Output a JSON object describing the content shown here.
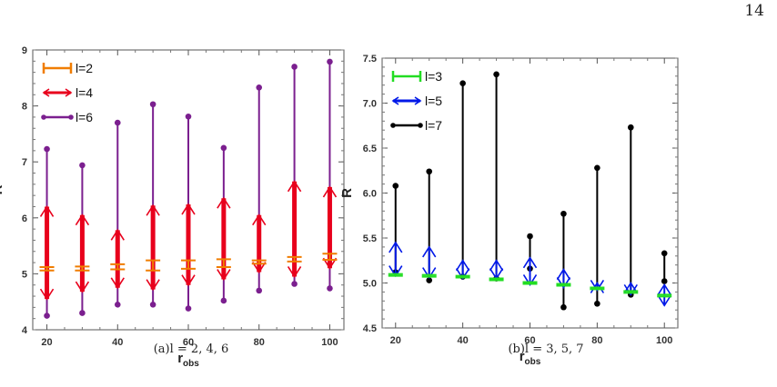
{
  "page_number": "14",
  "chart_data": [
    {
      "type": "errorbar",
      "caption": "(a)l = 2, 4, 6",
      "xlabel": "r",
      "xlabel_sub": "obs",
      "ylabel": "R",
      "xlim": [
        16,
        104
      ],
      "ylim": [
        4,
        9
      ],
      "xticks": [
        20,
        40,
        60,
        80,
        100
      ],
      "yticks": [
        4,
        5,
        6,
        7,
        8,
        9
      ],
      "grid": false,
      "legend_position": "top-left",
      "x": [
        20,
        30,
        40,
        50,
        60,
        70,
        80,
        90,
        100
      ],
      "series": [
        {
          "name": "l=6",
          "color": "#7b1f8f",
          "cap": "dot",
          "width": 2,
          "low": [
            4.25,
            4.3,
            4.45,
            4.45,
            4.38,
            4.52,
            4.7,
            4.82,
            4.74
          ],
          "high": [
            7.23,
            6.94,
            7.7,
            8.03,
            7.81,
            7.25,
            8.33,
            8.7,
            8.79
          ]
        },
        {
          "name": "l=4",
          "color": "#e8001c",
          "cap": "arrow",
          "width": 5,
          "low": [
            4.55,
            4.68,
            4.75,
            4.72,
            4.8,
            4.9,
            5.03,
            4.95,
            5.1
          ],
          "high": [
            6.2,
            6.05,
            5.78,
            6.22,
            6.24,
            6.35,
            6.05,
            6.65,
            6.55
          ]
        },
        {
          "name": "l=2",
          "color": "#f07d00",
          "cap": "bar",
          "width": 2,
          "low": [
            5.06,
            5.06,
            5.08,
            5.06,
            5.09,
            5.12,
            5.18,
            5.22,
            5.25
          ],
          "high": [
            5.12,
            5.13,
            5.17,
            5.24,
            5.24,
            5.26,
            5.24,
            5.3,
            5.36
          ]
        }
      ],
      "legend_order": [
        "l=2",
        "l=4",
        "l=6"
      ]
    },
    {
      "type": "errorbar",
      "caption": "(b)l = 3, 5, 7",
      "xlabel": "r",
      "xlabel_sub": "obs",
      "ylabel": "R",
      "xlim": [
        16,
        104
      ],
      "ylim": [
        4.5,
        7.5
      ],
      "xticks": [
        20,
        40,
        60,
        80,
        100
      ],
      "yticks": [
        4.5,
        5.0,
        5.5,
        6.0,
        6.5,
        7.0,
        7.5
      ],
      "ytick_labels": [
        "4.5",
        "5.0",
        "5.5",
        "6.0",
        "6.5",
        "7.0",
        "7.5"
      ],
      "grid": false,
      "legend_position": "top-left",
      "x": [
        20,
        30,
        40,
        50,
        60,
        70,
        80,
        90,
        100
      ],
      "series": [
        {
          "name": "l=7",
          "color": "#000000",
          "cap": "dot",
          "width": 2,
          "low": [
            5.12,
            5.03,
            5.07,
            5.05,
            5.16,
            4.73,
            4.77,
            4.87,
            5.02
          ],
          "high": [
            6.08,
            6.24,
            7.22,
            7.32,
            5.52,
            5.77,
            6.28,
            6.73,
            5.33
          ]
        },
        {
          "name": "l=5",
          "color": "#0018e8",
          "cap": "arrow",
          "width": 2,
          "low": [
            5.08,
            5.06,
            5.05,
            5.05,
            4.98,
            4.95,
            4.92,
            4.87,
            4.75
          ],
          "high": [
            5.45,
            5.4,
            5.25,
            5.25,
            5.28,
            5.15,
            5.0,
            5.0,
            4.98
          ]
        },
        {
          "name": "l=3",
          "color": "#22dd22",
          "cap": "bar",
          "width": 2,
          "low": [
            5.08,
            5.07,
            5.06,
            5.03,
            4.99,
            4.97,
            4.93,
            4.89,
            4.85
          ],
          "high": [
            5.1,
            5.09,
            5.08,
            5.05,
            5.01,
            4.99,
            4.95,
            4.91,
            4.87
          ]
        }
      ],
      "legend_order": [
        "l=3",
        "l=5",
        "l=7"
      ]
    }
  ]
}
